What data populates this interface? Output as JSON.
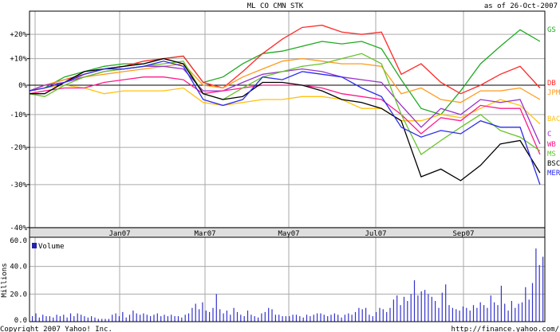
{
  "header": {
    "title": "ML CO CMN STK",
    "as_of": "as of 26-Oct-2007"
  },
  "footer": {
    "copyright": "Copyright 2007 Yahoo! Inc.",
    "url": "http://finance.yahoo.com/"
  },
  "chart_data": [
    {
      "type": "line",
      "title": "ML CO CMN STK",
      "subtitle": "as of 26-Oct-2007",
      "y_scale": "log (percent change)",
      "yticks": [
        "+20%",
        "+10%",
        "0%",
        "-10%",
        "-20%",
        "-30%",
        "-40%"
      ],
      "ytick_values": [
        20,
        10,
        0,
        -10,
        -20,
        -30,
        -40
      ],
      "ylim": [
        -40,
        30
      ],
      "xticks": [
        "Jan07",
        "Mar07",
        "May07",
        "Jul07",
        "Sep07"
      ],
      "grid": true,
      "legend": "right",
      "x": [
        "2006-10-26",
        "2006-11-09",
        "2006-11-23",
        "2006-12-07",
        "2006-12-21",
        "2007-01-04",
        "2007-01-18",
        "2007-02-01",
        "2007-02-15",
        "2007-03-01",
        "2007-03-15",
        "2007-03-29",
        "2007-04-12",
        "2007-04-26",
        "2007-05-10",
        "2007-05-24",
        "2007-06-07",
        "2007-06-21",
        "2007-07-05",
        "2007-07-19",
        "2007-08-02",
        "2007-08-16",
        "2007-08-30",
        "2007-09-13",
        "2007-09-27",
        "2007-10-11",
        "2007-10-25"
      ],
      "series": [
        {
          "name": "GS",
          "color": "#1faa1f",
          "values": [
            -2,
            -1,
            3,
            5,
            7,
            8,
            8,
            10,
            11,
            1,
            3,
            8,
            12,
            13,
            15,
            17,
            16,
            17,
            14,
            2,
            -8,
            -10,
            -2,
            8,
            15,
            22,
            17
          ]
        },
        {
          "name": "DB",
          "color": "#ff2a2a",
          "values": [
            -2,
            0,
            2,
            4,
            6,
            7,
            9,
            10,
            11,
            1,
            -1,
            5,
            12,
            18,
            23,
            24,
            21,
            20,
            21,
            4,
            8,
            1,
            -3,
            0,
            4,
            7,
            -1
          ]
        },
        {
          "name": "JPM",
          "color": "#ff9a1a",
          "values": [
            -2,
            0,
            2,
            3,
            4,
            5,
            6,
            7,
            8,
            0,
            -1,
            3,
            6,
            9,
            10,
            9,
            8,
            8,
            7,
            -3,
            -1,
            -5,
            -6,
            -2,
            -2,
            -1,
            -5
          ]
        },
        {
          "name": "BAC",
          "color": "#ffc20e",
          "values": [
            -2,
            -1,
            0,
            -1,
            -3,
            -2,
            -2,
            -2,
            -1,
            -6,
            -7,
            -6,
            -5,
            -5,
            -4,
            -4,
            -5,
            -8,
            -8,
            -12,
            -12,
            -10,
            -11,
            -8,
            -5,
            -7,
            -13
          ]
        },
        {
          "name": "C",
          "color": "#9933cc",
          "values": [
            -2,
            0,
            1,
            3,
            5,
            6,
            7,
            7,
            6,
            -2,
            -2,
            1,
            4,
            5,
            6,
            5,
            3,
            2,
            1,
            -7,
            -14,
            -8,
            -10,
            -5,
            -6,
            -5,
            -19
          ]
        },
        {
          "name": "WB",
          "color": "#ff1a8c",
          "values": [
            -3,
            -2,
            -1,
            -1,
            1,
            2,
            3,
            3,
            2,
            -3,
            -2,
            -1,
            0,
            0,
            0,
            -1,
            -3,
            -4,
            -5,
            -10,
            -16,
            -11,
            -12,
            -7,
            -8,
            -8,
            -22
          ]
        },
        {
          "name": "MS",
          "color": "#66c42a",
          "values": [
            -3,
            -4,
            0,
            3,
            5,
            6,
            7,
            8,
            9,
            -3,
            -5,
            -1,
            3,
            5,
            7,
            8,
            10,
            12,
            8,
            -10,
            -22,
            -18,
            -14,
            -10,
            -15,
            -17,
            -21
          ]
        },
        {
          "name": "BSC",
          "color": "#000000",
          "values": [
            -3,
            -3,
            1,
            5,
            6,
            7,
            8,
            10,
            8,
            -3,
            -5,
            -4,
            1,
            1,
            0,
            -2,
            -5,
            -6,
            -8,
            -12,
            -28,
            -26,
            -29,
            -25,
            -19,
            -18,
            -27
          ]
        },
        {
          "name": "MER",
          "color": "#2a2aee",
          "values": [
            -2,
            -1,
            1,
            4,
            6,
            6,
            7,
            9,
            7,
            -5,
            -7,
            -5,
            3,
            2,
            5,
            4,
            3,
            -1,
            -4,
            -14,
            -17,
            -15,
            -16,
            -12,
            -14,
            -14,
            -30
          ]
        }
      ]
    },
    {
      "type": "bar",
      "legend": "Volume",
      "ylabel": "Millions",
      "yticks": [
        "60.0",
        "40.0",
        "20.0",
        "0.0"
      ],
      "ylim": [
        0,
        60
      ],
      "color": "#3333cc",
      "grid": true,
      "x_range": [
        "2006-10-26",
        "2007-10-26"
      ],
      "values": [
        4,
        6,
        3,
        5,
        4,
        4,
        3,
        5,
        4,
        5,
        3,
        6,
        4,
        6,
        5,
        4,
        3,
        4,
        3,
        2,
        2,
        2,
        2,
        5,
        6,
        4,
        7,
        3,
        5,
        8,
        6,
        5,
        6,
        5,
        4,
        5,
        6,
        4,
        5,
        4,
        5,
        4,
        4,
        3,
        5,
        6,
        10,
        13,
        9,
        14,
        8,
        7,
        10,
        20,
        9,
        6,
        8,
        5,
        10,
        7,
        5,
        4,
        8,
        5,
        4,
        3,
        6,
        7,
        10,
        9,
        5,
        5,
        4,
        4,
        4,
        5,
        5,
        4,
        3,
        5,
        4,
        5,
        6,
        6,
        5,
        4,
        5,
        6,
        5,
        3,
        5,
        6,
        5,
        7,
        10,
        9,
        10,
        5,
        4,
        7,
        10,
        9,
        7,
        10,
        16,
        19,
        12,
        18,
        15,
        20,
        30,
        19,
        22,
        23,
        20,
        18,
        15,
        10,
        21,
        27,
        12,
        10,
        9,
        8,
        11,
        10,
        8,
        12,
        10,
        14,
        12,
        10,
        19,
        14,
        12,
        26,
        13,
        8,
        15,
        10,
        13,
        14,
        25,
        16,
        28,
        53,
        41,
        47
      ]
    }
  ]
}
